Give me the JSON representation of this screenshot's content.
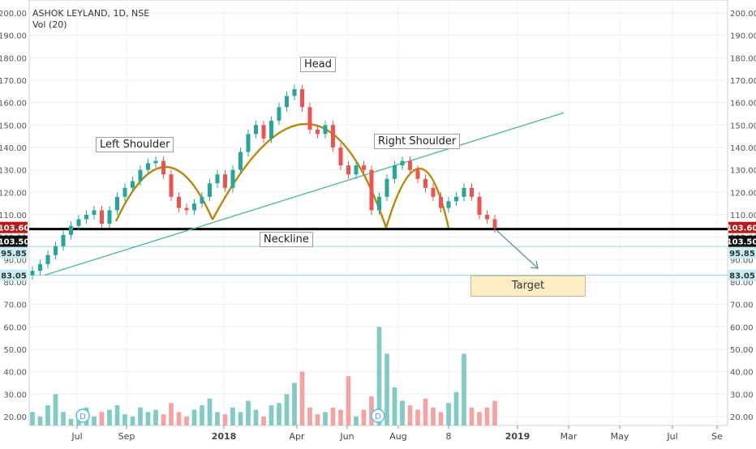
{
  "header": {
    "title": "ASHOK LEYLAND, 1D, NSE",
    "indicator": "Vol (20)"
  },
  "chart_data": {
    "type": "line",
    "x_ticks": [
      "Jul",
      "Sep",
      "2018",
      "Apr",
      "Jun",
      "Aug",
      "8",
      "2019",
      "Mar",
      "May",
      "Jul",
      "Se"
    ],
    "y_ticks": [
      "200.00",
      "190.00",
      "180.00",
      "170.00",
      "160.00",
      "150.00",
      "140.00",
      "130.00",
      "120.00",
      "110.00",
      "100.00",
      "90.00",
      "80.00",
      "70.00",
      "60.00",
      "50.00",
      "40.00",
      "30.00",
      "20.00"
    ],
    "ylim": [
      15,
      205
    ],
    "series": [
      {
        "values": [
          85,
          88,
          92,
          96,
          101,
          105,
          108,
          110,
          112,
          106,
          112,
          118,
          122,
          125,
          130,
          133,
          134,
          128,
          118,
          113,
          112,
          115,
          118,
          124,
          128,
          122,
          130,
          138,
          146,
          150,
          144,
          152,
          158,
          163,
          166,
          158,
          148,
          146,
          150,
          140,
          132,
          128,
          132,
          130,
          112,
          118,
          126,
          132,
          134,
          130,
          126,
          122,
          118,
          113,
          116,
          118,
          122,
          118,
          110,
          108,
          104
        ]
      }
    ],
    "volume": [
      22,
      20,
      25,
      30,
      22,
      19,
      21,
      24,
      20,
      22,
      23,
      25,
      21,
      20,
      24,
      22,
      23,
      21,
      26,
      22,
      20,
      23,
      25,
      28,
      22,
      21,
      24,
      22,
      27,
      23,
      20,
      25,
      26,
      30,
      35,
      40,
      24,
      21,
      22,
      24,
      23,
      38,
      20,
      23,
      29,
      60,
      48,
      33,
      27,
      25,
      23,
      28,
      24,
      22,
      26,
      31,
      48,
      24,
      22,
      24,
      27
    ],
    "price_labels": {
      "current": "103.60",
      "neckline": "103.50",
      "level_1": "95.85",
      "level_2": "83.05"
    },
    "annotations": {
      "head": "Head",
      "left_shoulder": "Left Shoulder",
      "right_shoulder": "Right Shoulder",
      "neckline": "Neckline",
      "target": "Target"
    },
    "event_markers": [
      "D",
      "D"
    ],
    "colors": {
      "up": "#26a69a",
      "down": "#ef5350",
      "vol_up": "#80cbc4",
      "vol_down": "#f4a3a3",
      "arc": "#b8860b",
      "trend": "#4db6a0",
      "neckline": "#000000",
      "level_line": "#9ad8e0",
      "label_cyan": "#c6eef2",
      "label_red": "#b71c1c",
      "arrow": "#6f8ea3"
    }
  }
}
